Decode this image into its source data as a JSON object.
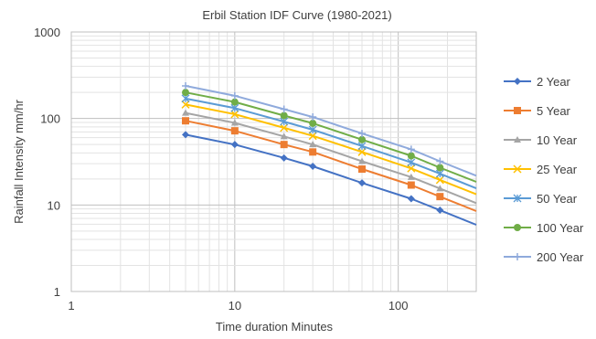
{
  "chart_data": {
    "type": "line",
    "title": "Erbil Station IDF Curve (1980-2021)",
    "xlabel": "Time duration Minutes",
    "ylabel": "Rainfall Intensity mm/hr",
    "xscale": "log",
    "yscale": "log",
    "xlim": [
      1,
      300
    ],
    "ylim": [
      1,
      1000
    ],
    "xticks": [
      1,
      10,
      100
    ],
    "xtick_labels": [
      "1",
      "10",
      "100"
    ],
    "yticks": [
      1,
      10,
      100,
      1000
    ],
    "ytick_labels": [
      "1",
      "10",
      "100",
      "1000"
    ],
    "grid": true,
    "legend_position": "right",
    "x": [
      5,
      10,
      20,
      30,
      60,
      120,
      180,
      300
    ],
    "series": [
      {
        "name": "2 Year",
        "color": "#4472C4",
        "marker": "diamond",
        "values": [
          65,
          50,
          35,
          28,
          18,
          11.8,
          8.7,
          5.9
        ]
      },
      {
        "name": "5 Year",
        "color": "#ED7D31",
        "marker": "square",
        "values": [
          94,
          72,
          50,
          41,
          26,
          17,
          12.5,
          8.5
        ]
      },
      {
        "name": "10 Year",
        "color": "#A5A5A5",
        "marker": "triangle",
        "values": [
          116,
          89,
          62,
          50,
          32,
          21,
          15.5,
          10.5
        ]
      },
      {
        "name": "25 Year",
        "color": "#FFC000",
        "marker": "x",
        "values": [
          145,
          112,
          78,
          63,
          41,
          26.5,
          19.5,
          13.3
        ]
      },
      {
        "name": "50 Year",
        "color": "#5B9BD5",
        "marker": "star",
        "values": [
          170,
          132,
          92,
          74,
          48,
          31,
          23,
          15.6
        ]
      },
      {
        "name": "100 Year",
        "color": "#70AD47",
        "marker": "circle",
        "values": [
          200,
          155,
          108,
          88,
          57,
          37,
          27,
          18.5
        ]
      },
      {
        "name": "200 Year",
        "color": "#8FAADC",
        "marker": "plus",
        "values": [
          238,
          183,
          128,
          104,
          67,
          44,
          32,
          21.8
        ]
      }
    ]
  }
}
